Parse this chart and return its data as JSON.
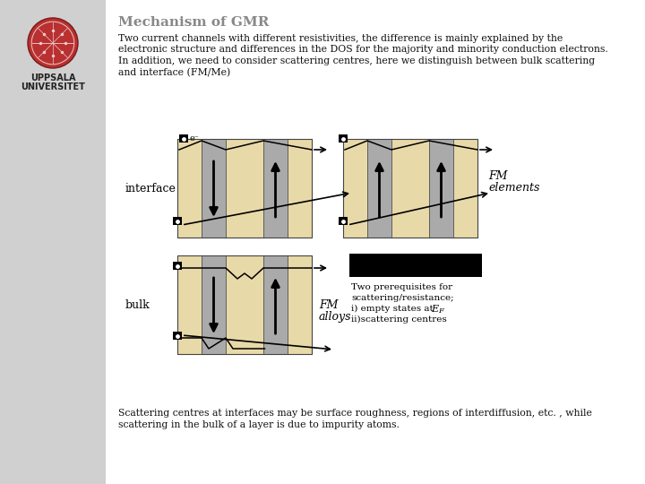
{
  "slide_bg": "#ffffff",
  "left_panel_color": "#d0d0d0",
  "title": "Mechanism of GMR",
  "title_color": "#888888",
  "title_fontsize": 11,
  "body_lines": [
    "Two current channels with different resistivities, the difference is mainly explained by the",
    "electronic structure and differences in the DOS for the majority and minority conduction electrons.",
    "In addition, we need to consider scattering centres, here we distinguish between bulk scattering",
    "and interface (FM/Me)"
  ],
  "body_fontsize": 7.8,
  "body_color": "#111111",
  "fm_color": "#e8d9a8",
  "me_color": "#aaaaaa",
  "label_interface": "interface",
  "label_bulk": "bulk",
  "label_fm_elements_1": "FM",
  "label_fm_elements_2": "elements",
  "label_fm_alloys_1": "FM",
  "label_fm_alloys_2": "alloys",
  "bottom_lines": [
    "Scattering centres at interfaces may be surface roughness, regions of interdiffusion, etc. , while",
    "scattering in the bulk of a layer is due to impurity atoms."
  ],
  "black_rect_color": "#000000",
  "logo_color": "#b83030",
  "logo_text_1": "UPPSALA",
  "logo_text_2": "UNIVERSITET",
  "prereq_lines": [
    "Two prerequisites for",
    "scattering/resistance;",
    "i) empty states at E",
    "ii)scattering centres"
  ]
}
